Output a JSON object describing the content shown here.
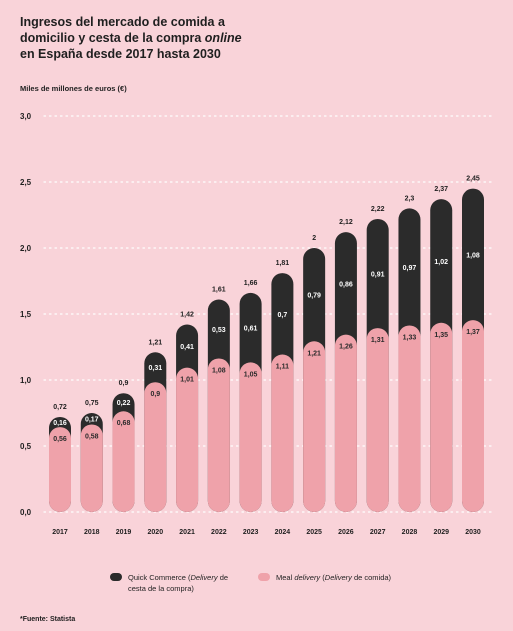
{
  "header": {
    "title_line1": "Ingresos del mercado de comida a",
    "title_line2_start": "domicilio y cesta de la compra ",
    "title_line2_italic": "online",
    "title_line3": "en España desde 2017 hasta 2030"
  },
  "legend": {
    "series1_a": "Quick Commerce (",
    "series1_b": "Delivery",
    "series1_c": " de",
    "series1_d": "cesta de la compra)",
    "series2_a": "Meal ",
    "series2_b": "delivery",
    "series2_c": " (",
    "series2_d": "Delivery",
    "series2_e": " de comida)"
  },
  "footnote": "*Fuente: Statista",
  "colors": {
    "background": "#f9d3d9",
    "quick_commerce": "#2b2b2b",
    "meal_delivery": "#efa2aa"
  },
  "chart_data": {
    "type": "bar",
    "stacked": true,
    "ylabel": "Miles de millones de euros (€)",
    "ylim": [
      0,
      3.0
    ],
    "yticks": [
      "0,0",
      "0,5",
      "1,0",
      "1,5",
      "2,0",
      "2,5",
      "3,0"
    ],
    "grid": true,
    "legend_position": "bottom",
    "categories": [
      "2017",
      "2018",
      "2019",
      "2020",
      "2021",
      "2022",
      "2023",
      "2024",
      "2025",
      "2026",
      "2027",
      "2028",
      "2029",
      "2030"
    ],
    "series": [
      {
        "name": "Meal delivery (Delivery de comida)",
        "color": "#efa2aa",
        "values": [
          0.56,
          0.58,
          0.68,
          0.9,
          1.01,
          1.08,
          1.05,
          1.11,
          1.21,
          1.26,
          1.31,
          1.33,
          1.35,
          1.37
        ],
        "labels": [
          "0,56",
          "0,58",
          "0,68",
          "0,9",
          "1,01",
          "1,08",
          "1,05",
          "1,11",
          "1,21",
          "1,26",
          "1,31",
          "1,33",
          "1,35",
          "1,37"
        ]
      },
      {
        "name": "Quick Commerce (Delivery de cesta de la compra)",
        "color": "#2b2b2b",
        "values": [
          0.16,
          0.17,
          0.22,
          0.31,
          0.41,
          0.53,
          0.61,
          0.7,
          0.79,
          0.86,
          0.91,
          0.97,
          1.02,
          1.08
        ],
        "labels": [
          "0,16",
          "0,17",
          "0,22",
          "0,31",
          "0,41",
          "0,53",
          "0,61",
          "0,7",
          "0,79",
          "0,86",
          "0,91",
          "0,97",
          "1,02",
          "1,08"
        ]
      }
    ],
    "totals": [
      0.72,
      0.75,
      0.9,
      1.21,
      1.42,
      1.61,
      1.66,
      1.81,
      2.0,
      2.12,
      2.22,
      2.3,
      2.37,
      2.45
    ],
    "total_labels": [
      "0,72",
      "0,75",
      "0,9",
      "1,21",
      "1,42",
      "1,61",
      "1,66",
      "1,81",
      "2",
      "2,12",
      "2,22",
      "2,3",
      "2,37",
      "2,45"
    ]
  }
}
